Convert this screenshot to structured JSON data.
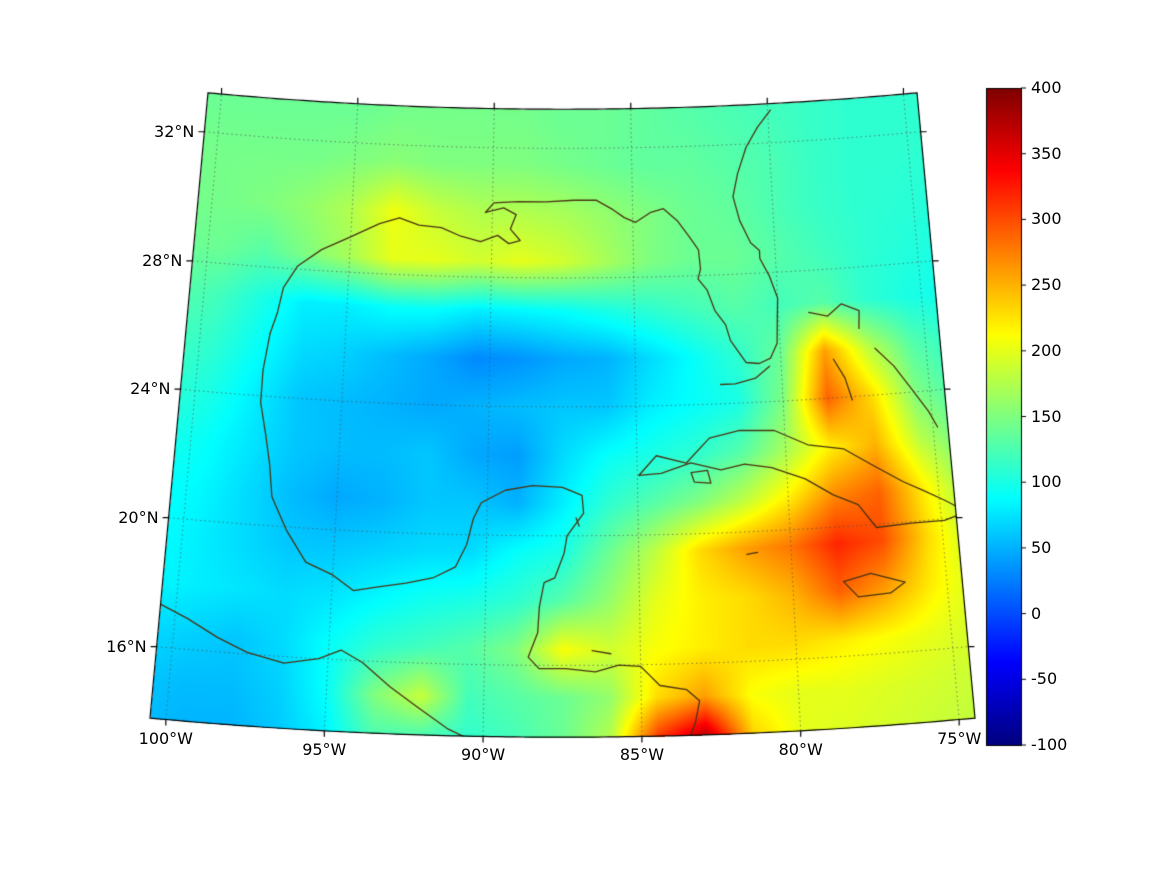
{
  "figure": {
    "background": "#ffffff"
  },
  "chart_data": {
    "type": "heatmap",
    "projection": "lambert-conformal-conic",
    "domain": {
      "lon_min": -100.5,
      "lon_max": -74.5,
      "lat_min": 13.8,
      "lat_max": 33.2,
      "central_lon": -87.5,
      "std_parallels": [
        18,
        30
      ]
    },
    "vmin": -100,
    "vmax": 400,
    "colormap": "jet",
    "grid": {
      "lons": [
        -101,
        -99.5,
        -98,
        -96.5,
        -95,
        -93.5,
        -92,
        -90.5,
        -89,
        -87.5,
        -86,
        -84.5,
        -83,
        -81.5,
        -80,
        -78.5,
        -77,
        -75.5,
        -74
      ],
      "lats": [
        13.5,
        15,
        16.5,
        18,
        19.5,
        21,
        22.5,
        24,
        25.5,
        27,
        28.5,
        30,
        31.5,
        33
      ],
      "values": [
        [
          55,
          50,
          50,
          60,
          80,
          120,
          110,
          110,
          120,
          140,
          180,
          330,
          400,
          240,
          200,
          195,
          190,
          185,
          180
        ],
        [
          60,
          55,
          55,
          65,
          90,
          150,
          185,
          120,
          130,
          140,
          160,
          230,
          260,
          210,
          200,
          200,
          195,
          190,
          185
        ],
        [
          70,
          65,
          60,
          70,
          90,
          110,
          120,
          130,
          150,
          210,
          190,
          210,
          220,
          230,
          230,
          220,
          210,
          200,
          190
        ],
        [
          85,
          80,
          75,
          70,
          75,
          85,
          95,
          100,
          110,
          130,
          160,
          200,
          220,
          230,
          250,
          290,
          260,
          220,
          190
        ],
        [
          90,
          80,
          70,
          60,
          60,
          65,
          70,
          70,
          90,
          100,
          140,
          180,
          230,
          260,
          280,
          320,
          300,
          230,
          180
        ],
        [
          90,
          85,
          70,
          55,
          45,
          50,
          60,
          60,
          50,
          80,
          110,
          130,
          150,
          180,
          220,
          270,
          290,
          220,
          160
        ],
        [
          100,
          90,
          75,
          60,
          55,
          55,
          60,
          45,
          40,
          70,
          90,
          100,
          110,
          130,
          170,
          220,
          250,
          180,
          140
        ],
        [
          110,
          100,
          80,
          60,
          55,
          50,
          45,
          50,
          55,
          60,
          60,
          80,
          90,
          100,
          150,
          290,
          230,
          150,
          120
        ],
        [
          120,
          110,
          90,
          70,
          65,
          55,
          45,
          30,
          35,
          45,
          50,
          70,
          90,
          110,
          140,
          260,
          180,
          130,
          110
        ],
        [
          130,
          120,
          100,
          80,
          80,
          90,
          90,
          80,
          85,
          90,
          100,
          110,
          120,
          130,
          120,
          130,
          110,
          100,
          95
        ],
        [
          140,
          140,
          130,
          150,
          170,
          200,
          200,
          190,
          200,
          190,
          170,
          150,
          140,
          140,
          130,
          120,
          110,
          105,
          100
        ],
        [
          145,
          145,
          150,
          160,
          175,
          205,
          185,
          175,
          175,
          170,
          160,
          150,
          140,
          135,
          125,
          115,
          110,
          108,
          105
        ],
        [
          145,
          145,
          145,
          145,
          150,
          155,
          150,
          150,
          150,
          145,
          140,
          135,
          135,
          130,
          125,
          115,
          110,
          110,
          110
        ],
        [
          140,
          140,
          140,
          140,
          140,
          145,
          145,
          145,
          145,
          140,
          140,
          135,
          130,
          125,
          120,
          115,
          110,
          110,
          110
        ]
      ]
    },
    "axes": {
      "lat_ticks": [
        {
          "value": 16,
          "label": "16°N"
        },
        {
          "value": 20,
          "label": "20°N"
        },
        {
          "value": 24,
          "label": "24°N"
        },
        {
          "value": 28,
          "label": "28°N"
        },
        {
          "value": 32,
          "label": "32°N"
        }
      ],
      "lon_ticks": [
        {
          "value": -100,
          "label": "100°W"
        },
        {
          "value": -95,
          "label": "95°W"
        },
        {
          "value": -90,
          "label": "90°W"
        },
        {
          "value": -85,
          "label": "85°W"
        },
        {
          "value": -80,
          "label": "80°W"
        },
        {
          "value": -75,
          "label": "75°W"
        }
      ]
    },
    "graticule": {
      "lat_lines": [
        16,
        20,
        24,
        28,
        32
      ],
      "lon_lines": [
        -100,
        -95,
        -90,
        -85,
        -80,
        -75
      ]
    },
    "colorbar": {
      "ticks": [
        -100,
        -50,
        0,
        50,
        100,
        150,
        200,
        250,
        300,
        350,
        400
      ],
      "tick_labels": [
        "-100",
        "-50",
        "0",
        "50",
        "100",
        "150",
        "200",
        "250",
        "300",
        "350",
        "400"
      ]
    },
    "coastlines": {
      "color": "#4a3413",
      "paths": [
        {
          "name": "us-gulf-atlantic-coast",
          "points": [
            [
              -97.6,
              25.95
            ],
            [
              -97.4,
              26.6
            ],
            [
              -97.25,
              27.4
            ],
            [
              -96.8,
              28.1
            ],
            [
              -96.0,
              28.65
            ],
            [
              -95.1,
              29.05
            ],
            [
              -94.0,
              29.55
            ],
            [
              -93.3,
              29.75
            ],
            [
              -92.6,
              29.55
            ],
            [
              -91.8,
              29.5
            ],
            [
              -91.1,
              29.25
            ],
            [
              -90.4,
              29.1
            ],
            [
              -89.8,
              29.3
            ],
            [
              -89.4,
              29.05
            ],
            [
              -89.0,
              29.15
            ],
            [
              -89.35,
              29.5
            ],
            [
              -89.15,
              29.95
            ],
            [
              -89.6,
              30.15
            ],
            [
              -90.25,
              30.0
            ],
            [
              -89.95,
              30.3
            ],
            [
              -89.1,
              30.35
            ],
            [
              -88.1,
              30.35
            ],
            [
              -87.1,
              30.4
            ],
            [
              -86.3,
              30.4
            ],
            [
              -85.7,
              30.1
            ],
            [
              -85.3,
              29.85
            ],
            [
              -84.9,
              29.7
            ],
            [
              -84.35,
              30.0
            ],
            [
              -83.9,
              30.1
            ],
            [
              -83.4,
              29.7
            ],
            [
              -83.0,
              29.2
            ],
            [
              -82.7,
              28.8
            ],
            [
              -82.65,
              28.2
            ],
            [
              -82.75,
              27.9
            ],
            [
              -82.45,
              27.55
            ],
            [
              -82.2,
              26.9
            ],
            [
              -81.85,
              26.45
            ],
            [
              -81.7,
              25.95
            ],
            [
              -81.2,
              25.25
            ],
            [
              -80.75,
              25.2
            ],
            [
              -80.35,
              25.35
            ],
            [
              -80.1,
              25.8
            ],
            [
              -80.05,
              26.55
            ],
            [
              -80.0,
              27.2
            ],
            [
              -80.25,
              27.9
            ],
            [
              -80.55,
              28.45
            ],
            [
              -80.55,
              28.7
            ],
            [
              -80.85,
              28.95
            ],
            [
              -81.2,
              29.65
            ],
            [
              -81.4,
              30.4
            ],
            [
              -81.2,
              31.1
            ],
            [
              -80.85,
              31.9
            ],
            [
              -80.4,
              32.5
            ],
            [
              -79.9,
              33.0
            ]
          ]
        },
        {
          "name": "mexico-central-america-coast",
          "points": [
            [
              -97.6,
              25.95
            ],
            [
              -97.75,
              24.8
            ],
            [
              -97.75,
              23.8
            ],
            [
              -97.5,
              22.8
            ],
            [
              -97.3,
              21.9
            ],
            [
              -97.15,
              20.9
            ],
            [
              -96.6,
              19.9
            ],
            [
              -95.9,
              18.95
            ],
            [
              -95.0,
              18.6
            ],
            [
              -94.3,
              18.15
            ],
            [
              -93.5,
              18.3
            ],
            [
              -92.6,
              18.45
            ],
            [
              -91.7,
              18.65
            ],
            [
              -91.0,
              19.0
            ],
            [
              -90.65,
              19.7
            ],
            [
              -90.45,
              20.5
            ],
            [
              -90.2,
              21.0
            ],
            [
              -89.4,
              21.4
            ],
            [
              -88.5,
              21.55
            ],
            [
              -87.5,
              21.5
            ],
            [
              -86.85,
              21.25
            ],
            [
              -86.8,
              20.7
            ],
            [
              -87.35,
              20.0
            ],
            [
              -87.45,
              19.45
            ],
            [
              -87.75,
              18.7
            ],
            [
              -88.1,
              18.55
            ],
            [
              -88.25,
              17.8
            ],
            [
              -88.3,
              17.0
            ],
            [
              -88.6,
              16.25
            ],
            [
              -88.25,
              15.9
            ],
            [
              -87.4,
              15.9
            ],
            [
              -86.45,
              15.8
            ],
            [
              -85.7,
              16.0
            ],
            [
              -85.0,
              15.95
            ],
            [
              -84.4,
              15.35
            ],
            [
              -83.55,
              15.2
            ],
            [
              -83.15,
              14.85
            ],
            [
              -83.3,
              14.2
            ],
            [
              -83.55,
              13.6
            ]
          ]
        },
        {
          "name": "pacific-coast",
          "points": [
            [
              -100.6,
              17.35
            ],
            [
              -99.6,
              16.95
            ],
            [
              -98.6,
              16.45
            ],
            [
              -97.6,
              16.05
            ],
            [
              -96.4,
              15.8
            ],
            [
              -95.3,
              16.0
            ],
            [
              -94.6,
              16.3
            ],
            [
              -93.9,
              15.95
            ],
            [
              -93.0,
              15.25
            ],
            [
              -92.1,
              14.65
            ],
            [
              -91.1,
              14.0
            ],
            [
              -90.3,
              13.65
            ]
          ]
        },
        {
          "name": "cuba",
          "points": [
            [
              -84.95,
              21.85
            ],
            [
              -84.35,
              22.45
            ],
            [
              -83.35,
              22.2
            ],
            [
              -82.55,
              22.95
            ],
            [
              -81.55,
              23.15
            ],
            [
              -80.35,
              23.1
            ],
            [
              -79.25,
              22.6
            ],
            [
              -78.05,
              22.4
            ],
            [
              -77.15,
              21.85
            ],
            [
              -76.15,
              21.25
            ],
            [
              -75.55,
              20.95
            ],
            [
              -74.8,
              20.55
            ],
            [
              -74.15,
              20.15
            ],
            [
              -74.9,
              19.95
            ],
            [
              -76.0,
              19.95
            ],
            [
              -77.15,
              19.9
            ],
            [
              -77.7,
              20.65
            ],
            [
              -78.5,
              21.0
            ],
            [
              -79.4,
              21.55
            ],
            [
              -80.5,
              21.95
            ],
            [
              -81.4,
              22.1
            ],
            [
              -82.2,
              21.95
            ],
            [
              -83.2,
              22.2
            ],
            [
              -84.2,
              21.9
            ],
            [
              -84.95,
              21.85
            ]
          ]
        },
        {
          "name": "isla-juventud",
          "points": [
            [
              -83.2,
              21.9
            ],
            [
              -82.65,
              21.95
            ],
            [
              -82.55,
              21.55
            ],
            [
              -83.1,
              21.6
            ],
            [
              -83.2,
              21.9
            ]
          ]
        },
        {
          "name": "jamaica",
          "points": [
            [
              -78.35,
              18.3
            ],
            [
              -77.45,
              18.5
            ],
            [
              -76.35,
              18.15
            ],
            [
              -76.85,
              17.85
            ],
            [
              -77.9,
              17.8
            ],
            [
              -78.35,
              18.3
            ]
          ]
        },
        {
          "name": "hispaniola-west-tip",
          "points": [
            [
              -74.5,
              19.9
            ],
            [
              -74.0,
              19.75
            ],
            [
              -73.6,
              19.65
            ],
            [
              -73.2,
              19.2
            ],
            [
              -73.75,
              18.55
            ],
            [
              -74.45,
              18.35
            ]
          ]
        },
        {
          "name": "bahamas-grand-abaco",
          "points": [
            [
              -78.95,
              26.7
            ],
            [
              -78.3,
              26.55
            ],
            [
              -77.8,
              26.9
            ],
            [
              -77.2,
              26.65
            ],
            [
              -77.25,
              26.1
            ]
          ]
        },
        {
          "name": "bahamas-andros",
          "points": [
            [
              -78.2,
              25.2
            ],
            [
              -77.85,
              24.6
            ],
            [
              -77.65,
              23.9
            ]
          ]
        },
        {
          "name": "bahamas-eleuthera-long",
          "points": [
            [
              -76.75,
              25.45
            ],
            [
              -76.15,
              24.85
            ],
            [
              -75.65,
              24.15
            ],
            [
              -75.1,
              23.35
            ],
            [
              -74.85,
              22.85
            ]
          ]
        },
        {
          "name": "florida-keys",
          "points": [
            [
              -80.4,
              25.1
            ],
            [
              -80.9,
              24.75
            ],
            [
              -81.6,
              24.6
            ],
            [
              -82.1,
              24.6
            ]
          ]
        },
        {
          "name": "cayman",
          "points": [
            [
              -81.45,
              19.3
            ],
            [
              -81.1,
              19.35
            ]
          ]
        },
        {
          "name": "bay-islands",
          "points": [
            [
              -86.55,
              16.45
            ],
            [
              -85.95,
              16.35
            ]
          ]
        },
        {
          "name": "cozumel",
          "points": [
            [
              -87.05,
              20.55
            ],
            [
              -86.95,
              20.3
            ]
          ]
        }
      ]
    },
    "styles": {
      "frame_color": "#000000",
      "tick_color": "#000000",
      "label_color": "#000000",
      "grid_color": "#5a5a5a"
    }
  }
}
